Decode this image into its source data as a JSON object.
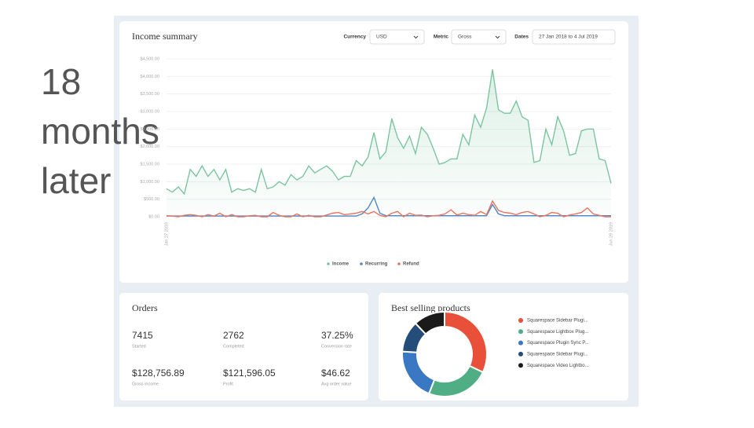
{
  "slide": {
    "caption_lines": [
      "18",
      "months",
      "later"
    ]
  },
  "income_summary": {
    "title": "Income summary",
    "controls": [
      {
        "label": "Currency",
        "value": "USD"
      },
      {
        "label": "Metric",
        "value": "Gross"
      },
      {
        "label": "Dates",
        "value": "27 Jan 2018 to 4 Jul 2019"
      }
    ]
  },
  "orders": {
    "title": "Orders",
    "stats": [
      {
        "value": "7415",
        "label": "Started"
      },
      {
        "value": "2762",
        "label": "Completed"
      },
      {
        "value": "37.25%",
        "label": "Conversion rate"
      },
      {
        "value": "$128,756.89",
        "label": "Gross income"
      },
      {
        "value": "$121,596.05",
        "label": "Profit"
      },
      {
        "value": "$46.62",
        "label": "Avg order value"
      }
    ]
  },
  "best_selling": {
    "title": "Best selling products"
  },
  "chart_data": [
    {
      "type": "line",
      "categories": [
        "Jan 27 2018",
        null,
        null,
        null,
        null,
        null,
        null,
        null,
        null,
        null,
        null,
        null,
        null,
        null,
        null,
        null,
        null,
        null,
        null,
        null,
        null,
        null,
        null,
        null,
        null,
        null,
        null,
        null,
        null,
        null,
        null,
        null,
        null,
        null,
        null,
        null,
        null,
        null,
        null,
        null,
        null,
        null,
        null,
        null,
        null,
        null,
        null,
        null,
        null,
        null,
        null,
        null,
        null,
        null,
        null,
        null,
        null,
        null,
        null,
        null,
        null,
        null,
        null,
        null,
        null,
        null,
        null,
        null,
        null,
        null,
        null,
        null,
        null,
        null,
        null,
        "Jun 29 2019"
      ],
      "series": [
        {
          "name": "Income",
          "color": "#7cc4a0",
          "values": [
            800,
            700,
            850,
            650,
            1350,
            1150,
            1450,
            1150,
            1350,
            1050,
            1350,
            700,
            800,
            750,
            800,
            700,
            1350,
            800,
            850,
            1000,
            900,
            1200,
            1050,
            1150,
            1450,
            1250,
            1350,
            1450,
            1300,
            1050,
            1150,
            1150,
            1600,
            1450,
            1700,
            2400,
            1650,
            1850,
            2800,
            2250,
            1950,
            2300,
            1800,
            2550,
            2350,
            1950,
            1500,
            1550,
            1650,
            1650,
            2350,
            2050,
            2900,
            2550,
            3100,
            4200,
            3050,
            2950,
            2950,
            3300,
            2850,
            2750,
            1550,
            1600,
            2500,
            2050,
            2850,
            2450,
            1750,
            1800,
            2450,
            2500,
            2500,
            1650,
            1600,
            950
          ]
        },
        {
          "name": "Recurring",
          "color": "#4f86c6",
          "values": [
            20,
            20,
            20,
            20,
            20,
            20,
            20,
            20,
            20,
            20,
            20,
            20,
            20,
            20,
            20,
            20,
            20,
            20,
            20,
            20,
            20,
            20,
            20,
            20,
            20,
            20,
            20,
            20,
            20,
            20,
            20,
            20,
            20,
            80,
            250,
            550,
            100,
            30,
            30,
            30,
            30,
            30,
            30,
            30,
            30,
            30,
            30,
            30,
            30,
            30,
            30,
            30,
            30,
            30,
            30,
            350,
            80,
            30,
            30,
            30,
            30,
            30,
            30,
            30,
            30,
            30,
            30,
            30,
            30,
            30,
            30,
            30,
            30,
            30,
            30,
            30
          ]
        },
        {
          "name": "Refund",
          "color": "#e8735f",
          "values": [
            30,
            20,
            0,
            40,
            60,
            40,
            0,
            60,
            20,
            100,
            0,
            60,
            0,
            0,
            30,
            40,
            0,
            0,
            120,
            40,
            0,
            0,
            80,
            0,
            40,
            0,
            0,
            50,
            100,
            120,
            60,
            80,
            100,
            150,
            80,
            150,
            40,
            0,
            100,
            150,
            0,
            100,
            40,
            50,
            0,
            30,
            40,
            80,
            200,
            50,
            100,
            60,
            40,
            150,
            60,
            450,
            180,
            120,
            100,
            60,
            120,
            150,
            80,
            0,
            40,
            120,
            100,
            0,
            50,
            80,
            120,
            250,
            80,
            40,
            0,
            0
          ]
        }
      ],
      "ylim": [
        0,
        4500
      ],
      "yticks": [
        {
          "value": 0,
          "label": "$0.00"
        },
        {
          "value": 500,
          "label": "$500.00"
        },
        {
          "value": 1000,
          "label": "$1,000.00"
        },
        {
          "value": 1500,
          "label": "$1,500.00"
        },
        {
          "value": 2000,
          "label": "$2,000.00"
        },
        {
          "value": 2500,
          "label": "$2,500.00"
        },
        {
          "value": 3000,
          "label": "$3,000.00"
        },
        {
          "value": 3500,
          "label": "$3,500.00"
        },
        {
          "value": 4000,
          "label": "$4,000.00"
        },
        {
          "value": 4500,
          "label": "$4,500.00"
        }
      ],
      "grid": true
    },
    {
      "type": "pie",
      "categories": [
        "Squarespace Sidebar Plugi...",
        "Squarespace Lightbox Plug...",
        "Squarespace Plugin Sync P...",
        "Squarespace Sidebar Plugi...",
        "Squarespace Video Lightbo..."
      ],
      "values": [
        32,
        24,
        20,
        12,
        12
      ],
      "colors": [
        "#e8503a",
        "#4fae84",
        "#3b78c4",
        "#244d7a",
        "#1a1a1a"
      ]
    }
  ]
}
